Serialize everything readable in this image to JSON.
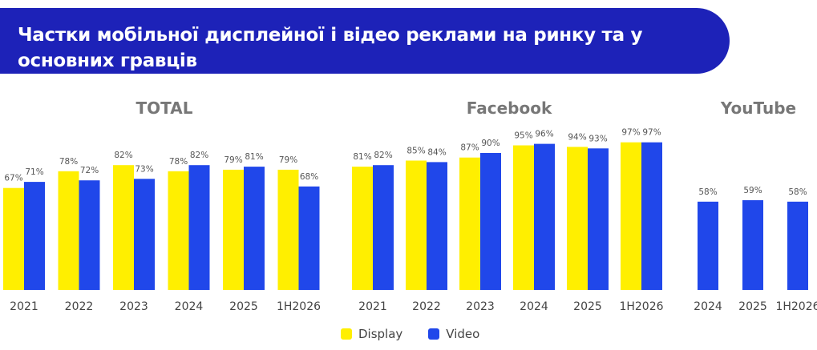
{
  "title": "Частки мобільної дисплейної і відео реклами на ринку та у основних гравців",
  "legend": [
    {
      "label": "Display",
      "color": "#ffef00"
    },
    {
      "label": "Video",
      "color": "#2047ea"
    }
  ],
  "chart_data": [
    {
      "type": "bar",
      "title": "TOTAL",
      "categories": [
        "2021",
        "2022",
        "2023",
        "2024",
        "2025",
        "1H2026"
      ],
      "series": [
        {
          "name": "Display",
          "values": [
            67,
            78,
            82,
            78,
            79,
            79
          ],
          "labels": [
            "67%",
            "78%",
            "82%",
            "78%",
            "79%",
            "79%"
          ]
        },
        {
          "name": "Video",
          "values": [
            71,
            72,
            73,
            82,
            81,
            68
          ],
          "labels": [
            "71%",
            "72%",
            "73%",
            "82%",
            "81%",
            "68%"
          ]
        }
      ],
      "ylim": [
        0,
        100
      ]
    },
    {
      "type": "bar",
      "title": "Facebook",
      "categories": [
        "2021",
        "2022",
        "2023",
        "2024",
        "2025",
        "1H2026"
      ],
      "series": [
        {
          "name": "Display",
          "values": [
            81,
            85,
            87,
            95,
            94,
            97
          ],
          "labels": [
            "81%",
            "85%",
            "87%",
            "95%",
            "94%",
            "97%"
          ]
        },
        {
          "name": "Video",
          "values": [
            82,
            84,
            90,
            96,
            93,
            97
          ],
          "labels": [
            "82%",
            "84%",
            "90%",
            "96%",
            "93%",
            "97%"
          ]
        }
      ],
      "ylim": [
        0,
        100
      ]
    },
    {
      "type": "bar",
      "title": "YouTube",
      "categories": [
        "2024",
        "2025",
        "1H2026"
      ],
      "series": [
        {
          "name": "Video",
          "values": [
            58,
            59,
            58
          ],
          "labels": [
            "58%",
            "59%",
            "58%"
          ]
        }
      ],
      "ylim": [
        0,
        100
      ]
    }
  ]
}
